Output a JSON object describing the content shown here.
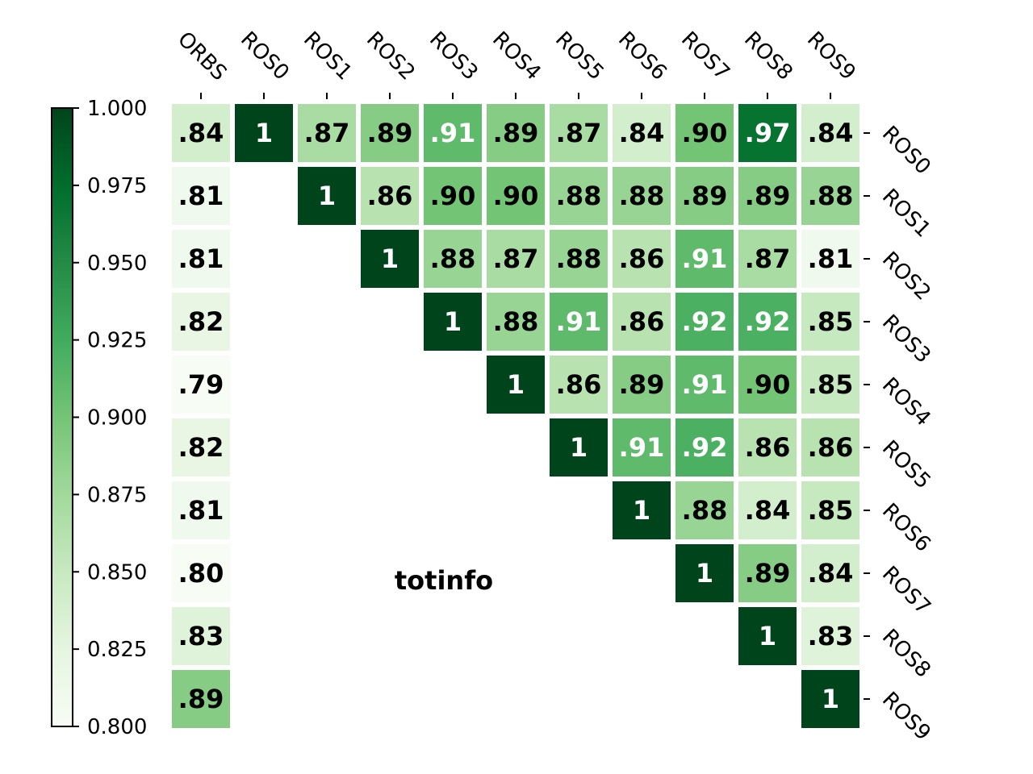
{
  "chart_data": {
    "type": "heatmap",
    "annotation": "totinfo",
    "columns": [
      "ORBS",
      "ROS0",
      "ROS1",
      "ROS2",
      "ROS3",
      "ROS4",
      "ROS5",
      "ROS6",
      "ROS7",
      "ROS8",
      "ROS9"
    ],
    "rows": [
      "ROS0",
      "ROS1",
      "ROS2",
      "ROS3",
      "ROS4",
      "ROS5",
      "ROS6",
      "ROS7",
      "ROS8",
      "ROS9"
    ],
    "values": [
      [
        0.84,
        1,
        0.87,
        0.89,
        0.91,
        0.89,
        0.87,
        0.84,
        0.9,
        0.97,
        0.84
      ],
      [
        0.81,
        null,
        1,
        0.86,
        0.9,
        0.9,
        0.88,
        0.88,
        0.89,
        0.89,
        0.88
      ],
      [
        0.81,
        null,
        null,
        1,
        0.88,
        0.87,
        0.88,
        0.86,
        0.91,
        0.87,
        0.81
      ],
      [
        0.82,
        null,
        null,
        null,
        1,
        0.88,
        0.91,
        0.86,
        0.92,
        0.92,
        0.85
      ],
      [
        0.79,
        null,
        null,
        null,
        null,
        1,
        0.86,
        0.89,
        0.91,
        0.9,
        0.85
      ],
      [
        0.82,
        null,
        null,
        null,
        null,
        null,
        1,
        0.91,
        0.92,
        0.86,
        0.86
      ],
      [
        0.81,
        null,
        null,
        null,
        null,
        null,
        null,
        1,
        0.88,
        0.84,
        0.85
      ],
      [
        0.8,
        null,
        null,
        null,
        null,
        null,
        null,
        null,
        1,
        0.89,
        0.84
      ],
      [
        0.83,
        null,
        null,
        null,
        null,
        null,
        null,
        null,
        null,
        1,
        0.83
      ],
      [
        0.89,
        null,
        null,
        null,
        null,
        null,
        null,
        null,
        null,
        null,
        1
      ]
    ],
    "labels": [
      [
        ".84",
        "1",
        ".87",
        ".89",
        ".91",
        ".89",
        ".87",
        ".84",
        ".90",
        ".97",
        ".84"
      ],
      [
        ".81",
        "",
        "1",
        ".86",
        ".90",
        ".90",
        ".88",
        ".88",
        ".89",
        ".89",
        ".88"
      ],
      [
        ".81",
        "",
        "",
        "1",
        ".88",
        ".87",
        ".88",
        ".86",
        ".91",
        ".87",
        ".81"
      ],
      [
        ".82",
        "",
        "",
        "",
        "1",
        ".88",
        ".91",
        ".86",
        ".92",
        ".92",
        ".85"
      ],
      [
        ".79",
        "",
        "",
        "",
        "",
        "1",
        ".86",
        ".89",
        ".91",
        ".90",
        ".85"
      ],
      [
        ".82",
        "",
        "",
        "",
        "",
        "",
        "1",
        ".91",
        ".92",
        ".86",
        ".86"
      ],
      [
        ".81",
        "",
        "",
        "",
        "",
        "",
        "",
        "1",
        ".88",
        ".84",
        ".85"
      ],
      [
        ".80",
        "",
        "",
        "",
        "",
        "",
        "",
        "",
        "1",
        ".89",
        ".84"
      ],
      [
        ".83",
        "",
        "",
        "",
        "",
        "",
        "",
        "",
        "",
        "1",
        ".83"
      ],
      [
        ".89",
        "",
        "",
        "",
        "",
        "",
        "",
        "",
        "",
        "",
        "1"
      ]
    ],
    "colormap": "Greens",
    "value_range": [
      0.8,
      1.0
    ],
    "colorbar": {
      "ticks": [
        1.0,
        0.975,
        0.95,
        0.925,
        0.9,
        0.875,
        0.85,
        0.825,
        0.8
      ],
      "tick_labels": [
        "1.000",
        "0.975",
        "0.950",
        "0.925",
        "0.900",
        "0.875",
        "0.850",
        "0.825",
        "0.800"
      ],
      "placement": "left"
    },
    "column_labels_placement": "top",
    "row_labels_placement": "right",
    "grid": false
  }
}
